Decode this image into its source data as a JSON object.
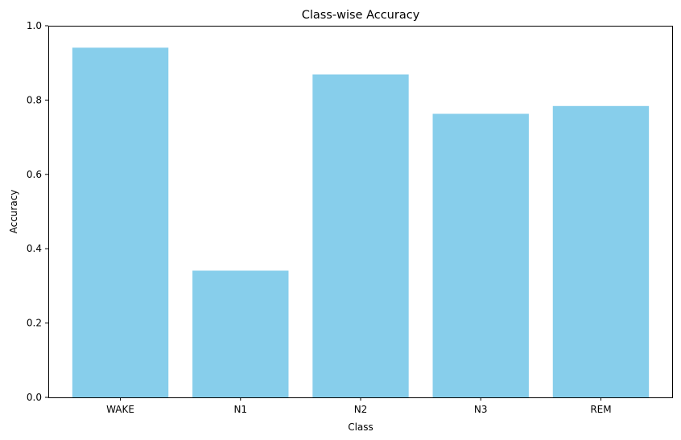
{
  "chart_data": {
    "type": "bar",
    "title": "Class-wise Accuracy",
    "xlabel": "Class",
    "ylabel": "Accuracy",
    "categories": [
      "WAKE",
      "N1",
      "N2",
      "N3",
      "REM"
    ],
    "values": [
      0.941,
      0.341,
      0.869,
      0.763,
      0.784
    ],
    "ylim": [
      0,
      1.0
    ],
    "yticks": [
      0.0,
      0.2,
      0.4,
      0.6,
      0.8,
      1.0
    ],
    "ytick_labels": [
      "0.0",
      "0.2",
      "0.4",
      "0.6",
      "0.8",
      "1.0"
    ],
    "bar_color": "#87ceeb",
    "grid": false,
    "legend": false
  }
}
